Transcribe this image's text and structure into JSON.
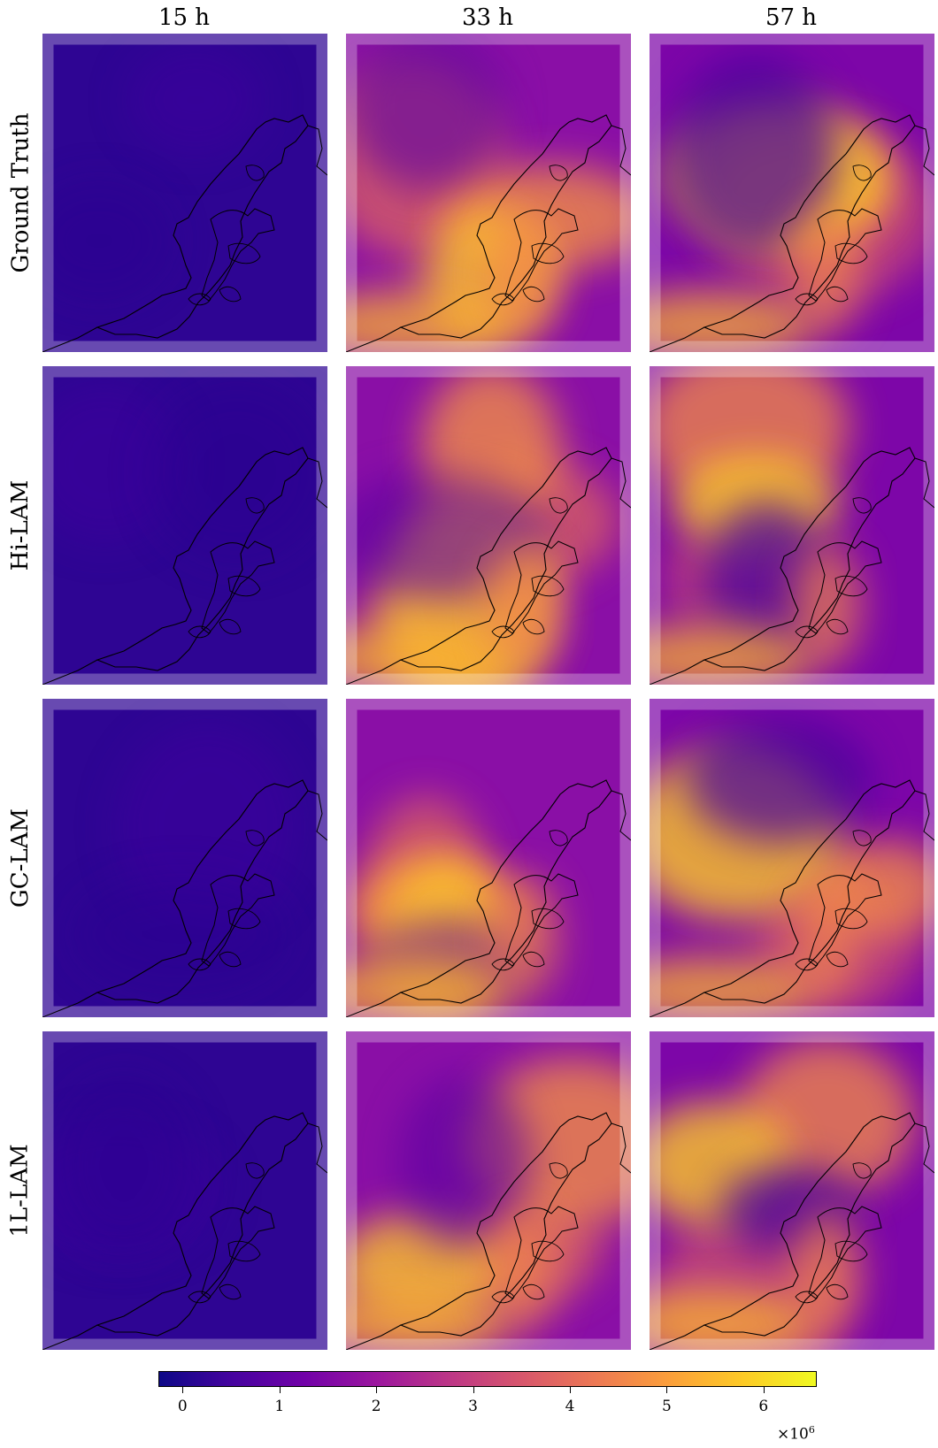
{
  "columns": [
    "15 h",
    "33 h",
    "57 h"
  ],
  "rows": [
    "Ground Truth",
    "Hi-LAM",
    "GC-LAM",
    "1L-LAM"
  ],
  "colorbar": {
    "colormap": "plasma",
    "ticks": [
      "0",
      "1",
      "2",
      "3",
      "4",
      "5",
      "6"
    ],
    "multiplier": "×10",
    "exponent": "6"
  }
}
